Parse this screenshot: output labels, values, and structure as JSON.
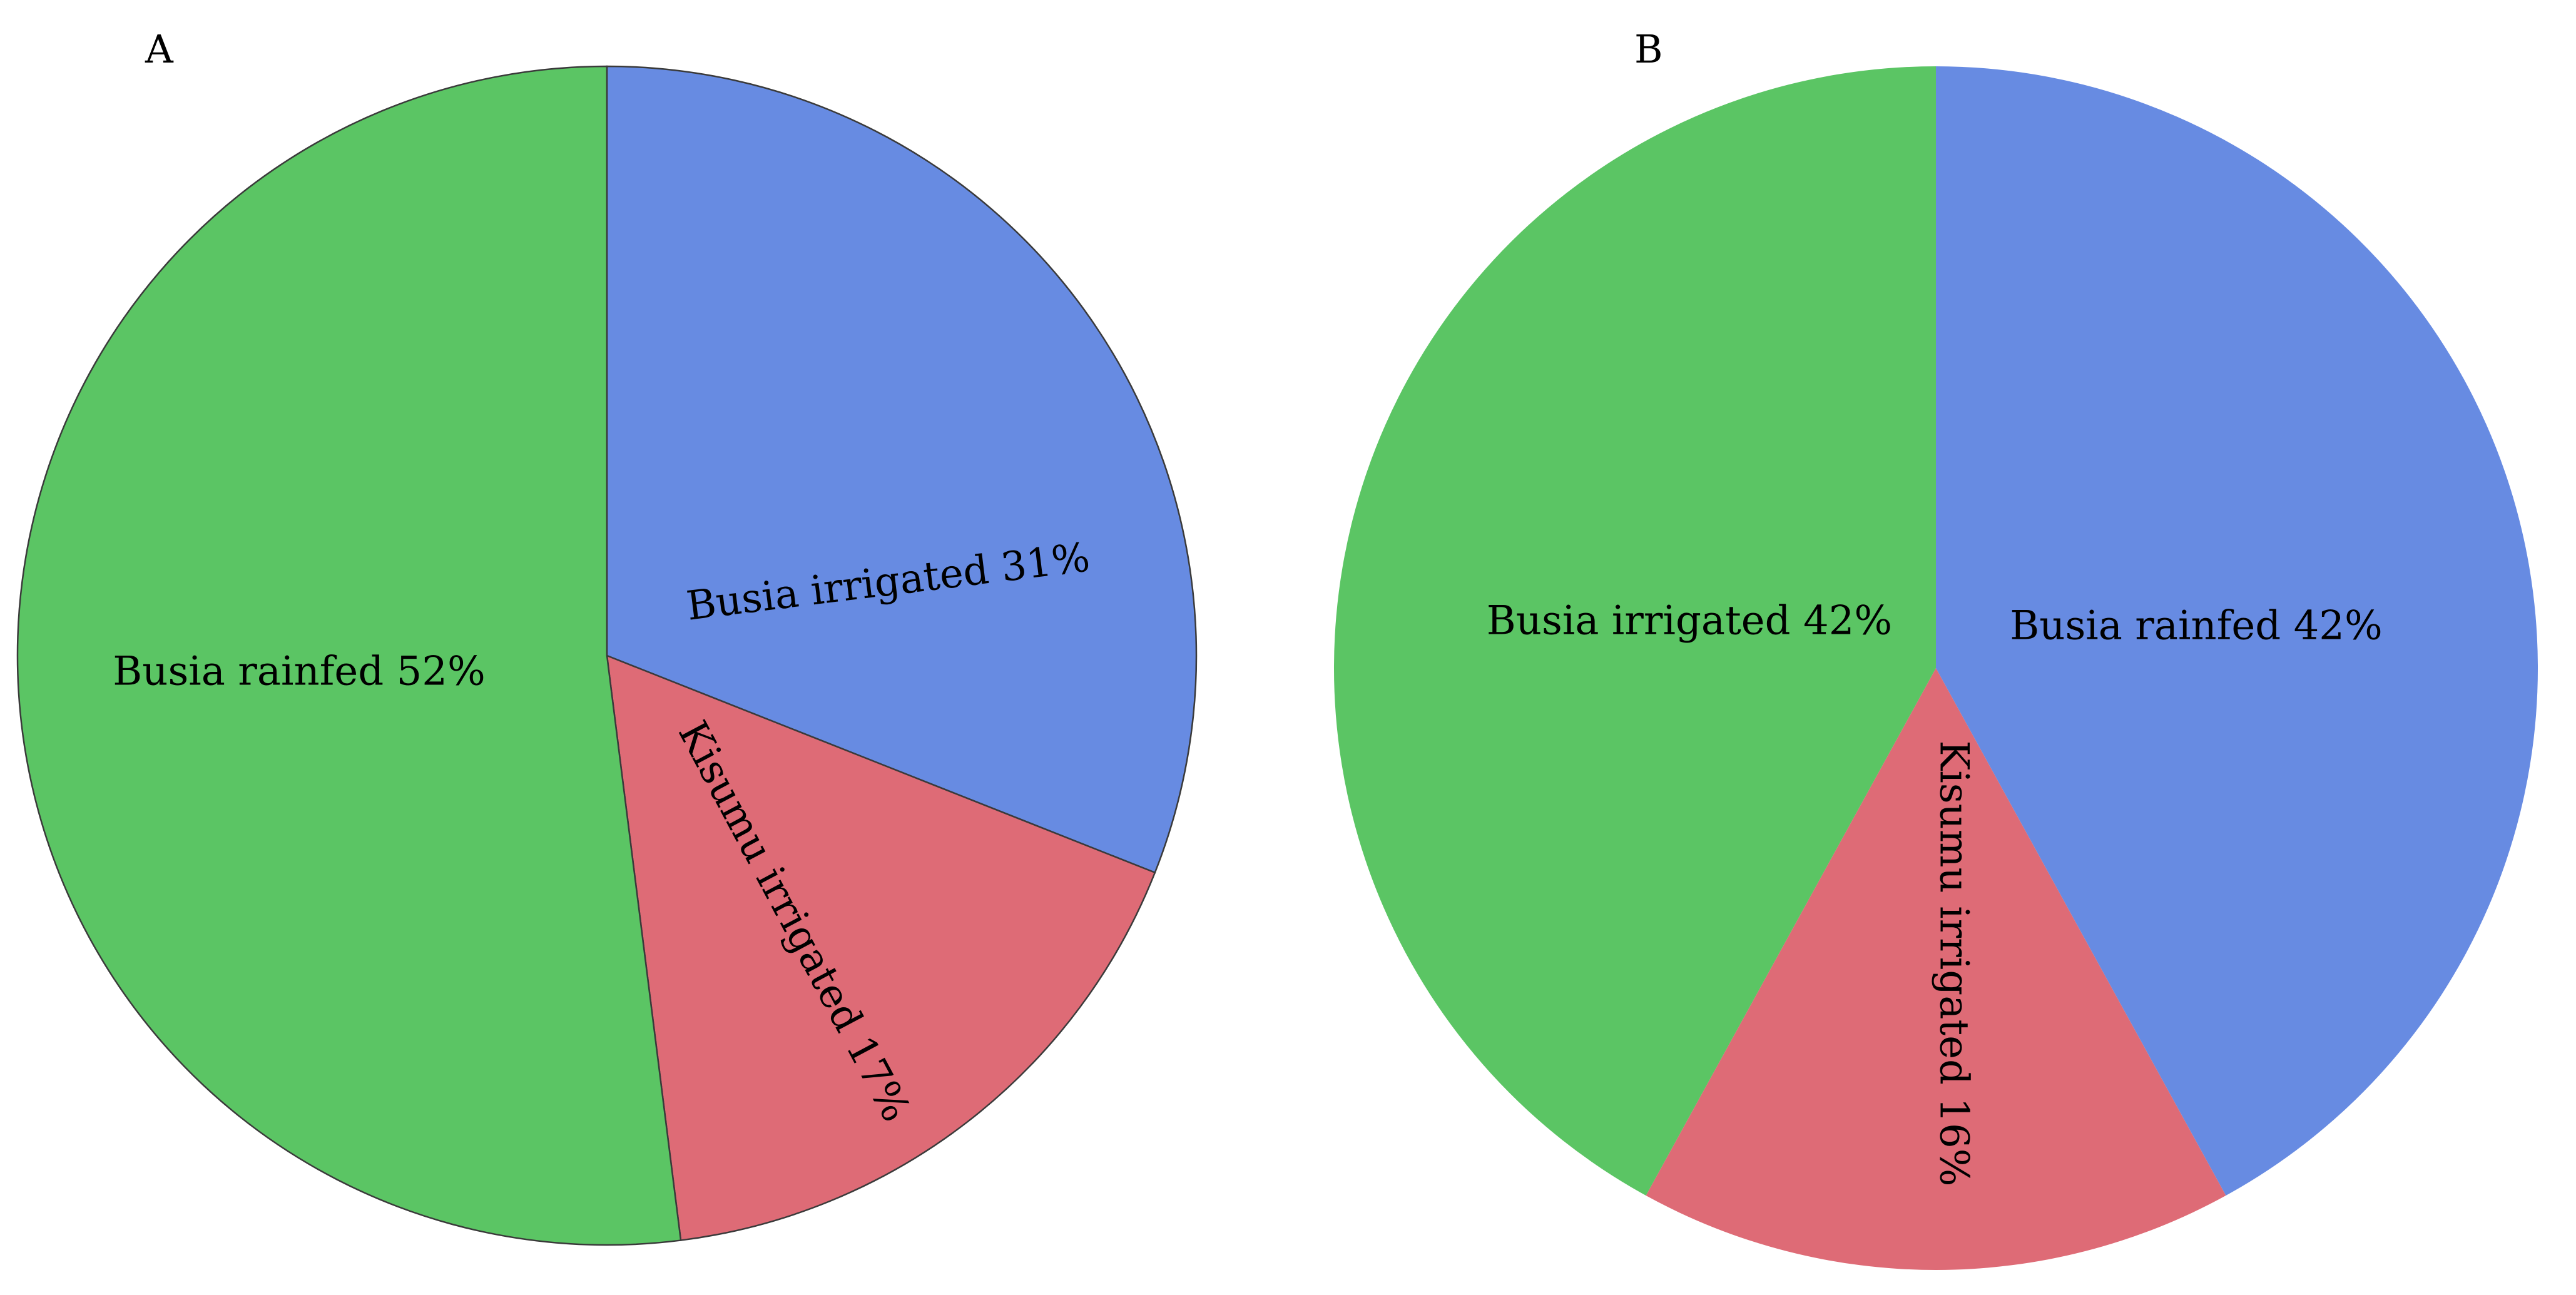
{
  "chart_data": [
    {
      "type": "pie",
      "panel_label": "A",
      "start_angle_deg": 0,
      "direction": "clockwise",
      "outline": true,
      "slices": [
        {
          "name": "Busia irrigated",
          "value": 31,
          "label": "Busia irrigated 31%",
          "color": "#678be2"
        },
        {
          "name": "Kisumu irrigated",
          "value": 17,
          "label": "Kisumu irrigated 17%",
          "color": "#de6b76"
        },
        {
          "name": "Busia rainfed",
          "value": 52,
          "label": "Busia rainfed 52%",
          "color": "#5bc564"
        }
      ]
    },
    {
      "type": "pie",
      "panel_label": "B",
      "start_angle_deg": 0,
      "direction": "clockwise",
      "outline": false,
      "slices": [
        {
          "name": "Busia rainfed",
          "value": 42,
          "label": "Busia rainfed 42%",
          "color": "#678be2"
        },
        {
          "name": "Kisumu irrigated",
          "value": 16,
          "label": "Kisumu irrigated 16%",
          "color": "#de6b76"
        },
        {
          "name": "Busia irrigated",
          "value": 42,
          "label": "Busia irrigated 42%",
          "color": "#5bc564"
        }
      ]
    }
  ]
}
